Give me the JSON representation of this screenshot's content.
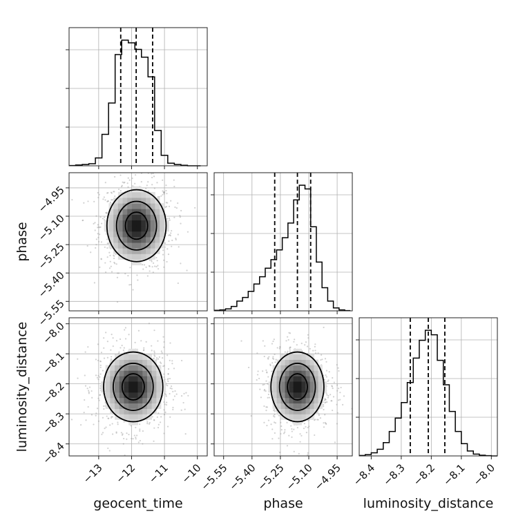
{
  "chart_data": {
    "type": "corner",
    "parameters": [
      "geocent_time",
      "phase",
      "luminosity_distance"
    ],
    "axis_labels": {
      "geocent_time": "geocent_time",
      "phase": "phase",
      "luminosity_distance": "luminosity_distance"
    },
    "ranges": {
      "geocent_time": [
        -13.9,
        -9.7
      ],
      "phase": [
        -5.6,
        -4.87
      ],
      "luminosity_distance": [
        -8.44,
        -7.98
      ]
    },
    "ticks": {
      "geocent_time": [
        -13,
        -12,
        -11,
        -10
      ],
      "phase": [
        -5.55,
        -5.4,
        -5.25,
        -5.1,
        -4.95
      ],
      "luminosity_distance": [
        -8.4,
        -8.3,
        -8.2,
        -8.1,
        -8.0
      ]
    },
    "tick_labels": {
      "geocent_time": [
        "−13",
        "−12",
        "−11",
        "−10"
      ],
      "phase": [
        "−5.55",
        "−5.40",
        "−5.25",
        "−5.10",
        "−4.95"
      ],
      "luminosity_distance": [
        "−8.4",
        "−8.3",
        "−8.2",
        "−8.1",
        "−8.0"
      ]
    },
    "quantiles": {
      "geocent_time": [
        -12.33,
        -11.86,
        -11.36
      ],
      "phase": [
        -5.28,
        -5.16,
        -5.09
      ],
      "luminosity_distance": [
        -8.27,
        -8.21,
        -8.155
      ]
    },
    "histograms": {
      "geocent_time": {
        "edges": [
          -13.9,
          -13.7,
          -13.5,
          -13.3,
          -13.1,
          -12.9,
          -12.7,
          -12.5,
          -12.3,
          -12.1,
          -11.9,
          -11.7,
          -11.5,
          -11.3,
          -11.1,
          -10.9,
          -10.7,
          -10.5,
          -10.3,
          -10.1,
          -9.9
        ],
        "counts": [
          1,
          3,
          5,
          8,
          30,
          120,
          240,
          425,
          480,
          470,
          445,
          415,
          340,
          135,
          40,
          10,
          5,
          2,
          0,
          0
        ]
      },
      "phase": {
        "edges": [
          -5.6,
          -5.57,
          -5.54,
          -5.51,
          -5.48,
          -5.45,
          -5.42,
          -5.39,
          -5.36,
          -5.33,
          -5.3,
          -5.27,
          -5.24,
          -5.21,
          -5.18,
          -5.15,
          -5.12,
          -5.09,
          -5.06,
          -5.03,
          -5.0,
          -4.97,
          -4.94,
          -4.91,
          -4.88
        ],
        "counts": [
          2,
          4,
          8,
          18,
          40,
          55,
          80,
          110,
          140,
          175,
          210,
          250,
          300,
          360,
          455,
          515,
          500,
          345,
          200,
          95,
          40,
          12,
          4,
          1
        ]
      },
      "luminosity_distance": {
        "edges": [
          -8.44,
          -8.42,
          -8.4,
          -8.38,
          -8.36,
          -8.34,
          -8.32,
          -8.3,
          -8.28,
          -8.26,
          -8.24,
          -8.22,
          -8.2,
          -8.18,
          -8.16,
          -8.14,
          -8.12,
          -8.1,
          -8.08,
          -8.06,
          -8.04,
          -8.02,
          -8.0,
          -7.98
        ],
        "counts": [
          2,
          6,
          14,
          30,
          60,
          110,
          170,
          240,
          330,
          440,
          520,
          565,
          545,
          430,
          320,
          200,
          110,
          55,
          22,
          8,
          3,
          1,
          0
        ]
      }
    },
    "hist2d": {
      "geocent_time__phase": {
        "center": [
          -11.85,
          -5.15
        ],
        "sigma": [
          0.45,
          0.095
        ]
      },
      "geocent_time__luminosity_distance": {
        "center": [
          -11.95,
          -8.21
        ],
        "sigma": [
          0.45,
          0.058
        ]
      },
      "phase__luminosity_distance": {
        "center": [
          -5.16,
          -8.21
        ],
        "sigma": [
          0.07,
          0.058
        ]
      }
    },
    "grid": true
  }
}
